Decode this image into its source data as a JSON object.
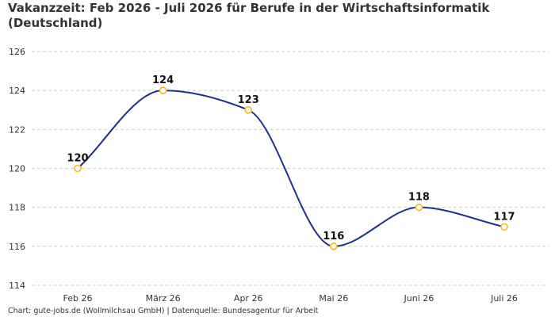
{
  "title": "Vakanzzeit: Feb 2026 - Juli 2026 für Berufe in der Wirtschaftsinformatik (Deutschland)",
  "footer": "Chart: gute-jobs.de (Wollmilchsau GmbH) | Datenquelle: Bundesagentur für Arbeit",
  "colors": {
    "line": "#1f2f8f",
    "marker": "#f2c230",
    "grid": "#cfcfcf"
  },
  "chart_data": {
    "type": "line",
    "title": "Vakanzzeit: Feb 2026 - Juli 2026 für Berufe in der Wirtschaftsinformatik (Deutschland)",
    "xlabel": "",
    "ylabel": "",
    "categories": [
      "Feb 26",
      "März 26",
      "Apr 26",
      "Mai 26",
      "Juni 26",
      "Juli 26"
    ],
    "values": [
      120,
      124,
      123,
      116,
      118,
      117
    ],
    "data_labels": [
      "120",
      "124",
      "123",
      "116",
      "118",
      "117"
    ],
    "ylim": [
      114,
      126
    ],
    "yticks": [
      114,
      116,
      118,
      120,
      122,
      124,
      126
    ],
    "grid": true,
    "legend": "none",
    "smooth": true
  }
}
